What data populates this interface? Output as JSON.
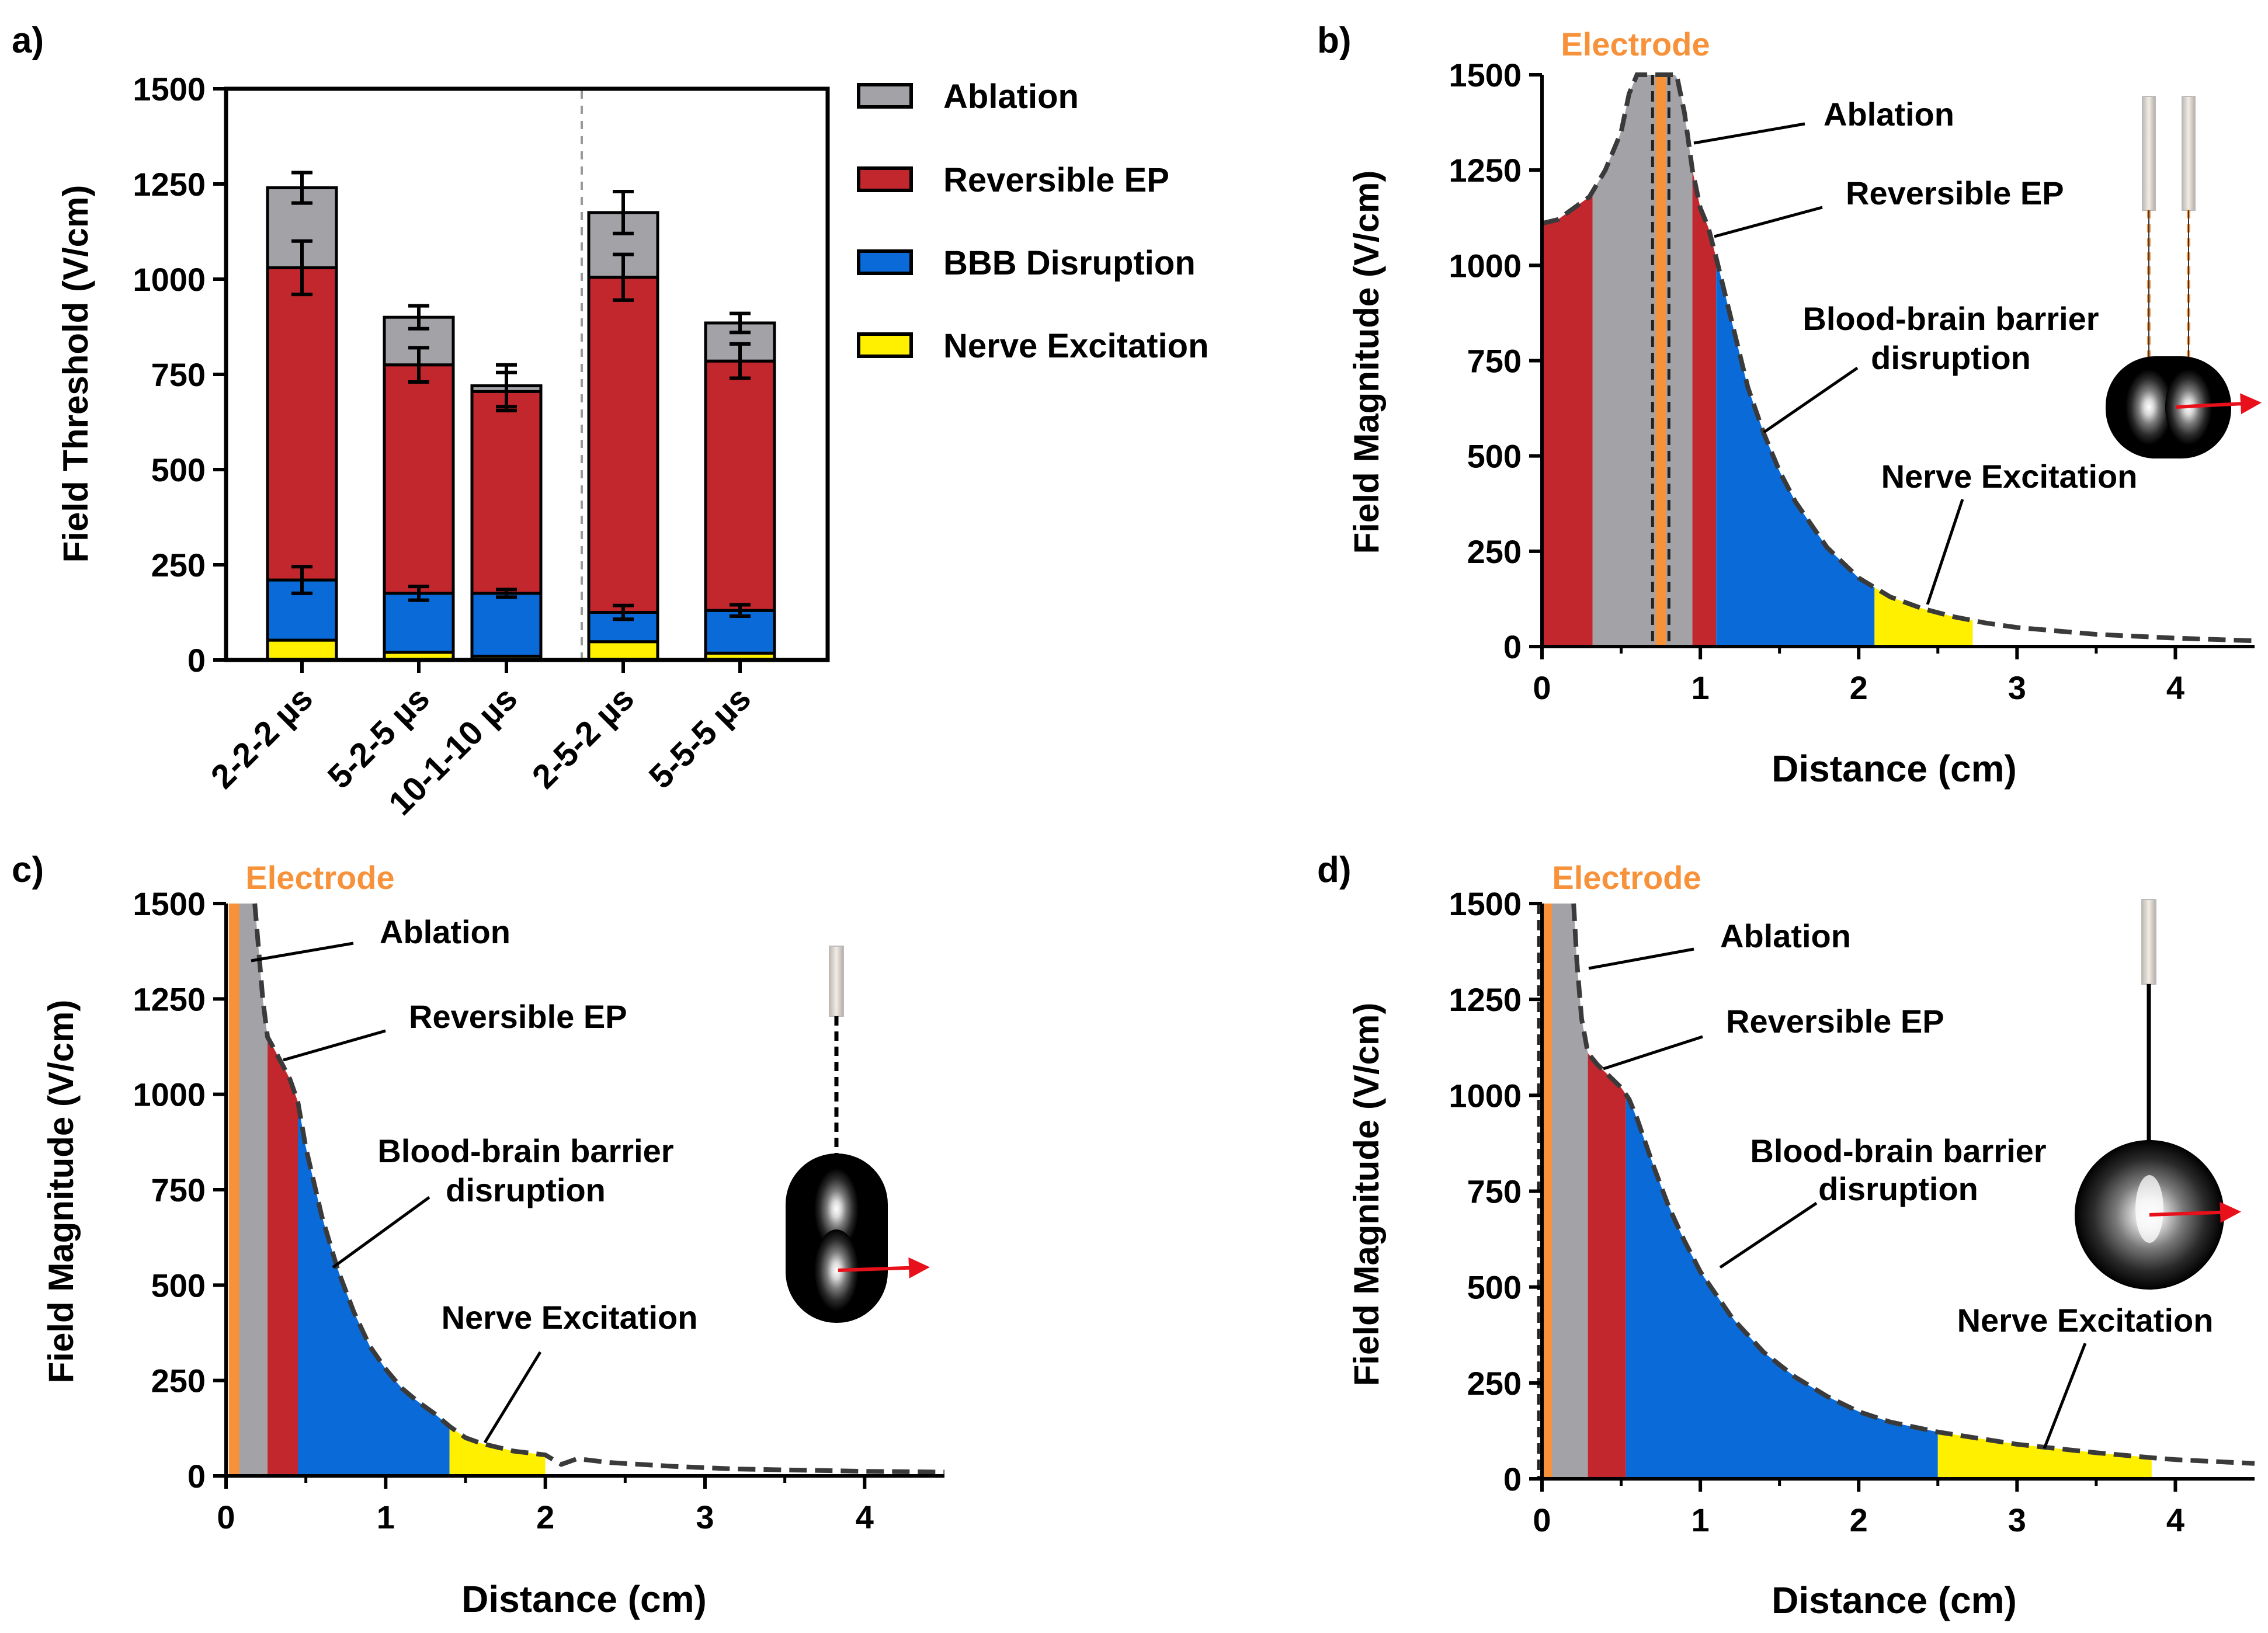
{
  "colors": {
    "ablation": "#A3A2A7",
    "reversible_ep": "#C1272D",
    "bbb": "#0A6AD8",
    "nerve": "#FFF000",
    "electrode": "#F7923A",
    "arrow": "#E8101A",
    "curve": "#3A3A3A"
  },
  "chart_data": [
    {
      "panel": "a)",
      "type": "bar",
      "stacked": true,
      "ylabel": "Field Threshold (V/cm)",
      "ylim": [
        0,
        1500
      ],
      "yticks": [
        "0",
        "250",
        "500",
        "750",
        "1000",
        "1250",
        "1500"
      ],
      "categories": [
        "2-2-2 µs",
        "5-2-5 µs",
        "10-1-10 µs",
        "2-5-2 µs",
        "5-5-5 µs"
      ],
      "divider_after_index": 2,
      "legend": [
        "Ablation",
        "Reversible EP",
        "BBB Disruption",
        "Nerve Excitation"
      ],
      "series": [
        {
          "name": "Nerve Excitation",
          "color_key": "nerve",
          "totals": [
            52,
            20,
            10,
            48,
            18
          ],
          "err": [
            0,
            0,
            0,
            0,
            0
          ]
        },
        {
          "name": "BBB Disruption",
          "color_key": "bbb",
          "totals": [
            210,
            175,
            175,
            125,
            130
          ],
          "err": [
            35,
            18,
            10,
            18,
            15
          ]
        },
        {
          "name": "Reversible EP",
          "color_key": "reversible_ep",
          "totals": [
            1030,
            775,
            705,
            1005,
            785
          ],
          "err": [
            70,
            45,
            50,
            60,
            45
          ]
        },
        {
          "name": "Ablation",
          "color_key": "ablation",
          "totals": [
            1240,
            900,
            720,
            1175,
            885
          ],
          "err": [
            40,
            30,
            55,
            55,
            25
          ]
        }
      ]
    },
    {
      "panel": "b)",
      "type": "area",
      "xlabel": "Distance (cm)",
      "ylabel": "Field Magnitude (V/cm)",
      "xlim": [
        0,
        4.5
      ],
      "ylim": [
        0,
        1500
      ],
      "xticks": [
        "0",
        "1",
        "2",
        "3",
        "4"
      ],
      "yticks": [
        "0",
        "250",
        "500",
        "750",
        "1000",
        "1250",
        "1500"
      ],
      "electrode_label": "Electrode",
      "electrode_x": 0.75,
      "curve": [
        [
          0,
          1110
        ],
        [
          0.1,
          1120
        ],
        [
          0.2,
          1150
        ],
        [
          0.3,
          1180
        ],
        [
          0.4,
          1250
        ],
        [
          0.5,
          1350
        ],
        [
          0.55,
          1450
        ],
        [
          0.6,
          1500
        ],
        [
          0.85,
          1500
        ],
        [
          0.9,
          1400
        ],
        [
          0.95,
          1250
        ],
        [
          1.0,
          1150
        ],
        [
          1.05,
          1100
        ],
        [
          1.1,
          1020
        ],
        [
          1.2,
          850
        ],
        [
          1.3,
          680
        ],
        [
          1.4,
          560
        ],
        [
          1.5,
          460
        ],
        [
          1.6,
          380
        ],
        [
          1.8,
          260
        ],
        [
          2.0,
          180
        ],
        [
          2.2,
          130
        ],
        [
          2.4,
          100
        ],
        [
          2.6,
          78
        ],
        [
          2.8,
          62
        ],
        [
          3.0,
          50
        ],
        [
          3.5,
          32
        ],
        [
          4.0,
          22
        ],
        [
          4.5,
          15
        ]
      ],
      "regions": [
        {
          "color_key": "reversible_ep",
          "x0": 0.0,
          "x1": 0.32
        },
        {
          "color_key": "ablation",
          "x0": 0.32,
          "x1": 0.95
        },
        {
          "color_key": "reversible_ep",
          "x0": 0.95,
          "x1": 1.1
        },
        {
          "color_key": "bbb",
          "x0": 1.1,
          "x1": 2.1
        },
        {
          "color_key": "nerve",
          "x0": 2.1,
          "x1": 2.72
        }
      ],
      "annotations": {
        "ablation": "Ablation",
        "rev": "Reversible EP",
        "bbb1": "Blood-brain barrier",
        "bbb2": "disruption",
        "nerve": "Nerve Excitation"
      }
    },
    {
      "panel": "c)",
      "type": "area",
      "xlabel": "Distance (cm)",
      "ylabel": "Field Magnitude (V/cm)",
      "xlim": [
        0,
        4.5
      ],
      "ylim": [
        0,
        1500
      ],
      "xticks": [
        "0",
        "1",
        "2",
        "3",
        "4"
      ],
      "yticks": [
        "0",
        "250",
        "500",
        "750",
        "1000",
        "1250",
        "1500"
      ],
      "electrode_label": "Electrode",
      "electrode_x": 0.05,
      "curve": [
        [
          0.18,
          1500
        ],
        [
          0.2,
          1400
        ],
        [
          0.23,
          1250
        ],
        [
          0.26,
          1150
        ],
        [
          0.3,
          1120
        ],
        [
          0.35,
          1080
        ],
        [
          0.4,
          1040
        ],
        [
          0.45,
          980
        ],
        [
          0.5,
          860
        ],
        [
          0.6,
          680
        ],
        [
          0.7,
          540
        ],
        [
          0.8,
          430
        ],
        [
          0.9,
          340
        ],
        [
          1.0,
          280
        ],
        [
          1.1,
          230
        ],
        [
          1.2,
          195
        ],
        [
          1.3,
          165
        ],
        [
          1.4,
          130
        ],
        [
          1.5,
          100
        ],
        [
          1.6,
          85
        ],
        [
          1.8,
          65
        ],
        [
          2.0,
          55
        ],
        [
          2.1,
          30
        ],
        [
          2.2,
          45
        ],
        [
          2.4,
          35
        ],
        [
          2.8,
          25
        ],
        [
          3.2,
          18
        ],
        [
          4.0,
          12
        ],
        [
          4.5,
          10
        ]
      ],
      "regions": [
        {
          "color_key": "ablation",
          "x0": 0.05,
          "x1": 0.26
        },
        {
          "color_key": "reversible_ep",
          "x0": 0.26,
          "x1": 0.45
        },
        {
          "color_key": "bbb",
          "x0": 0.45,
          "x1": 1.4
        },
        {
          "color_key": "nerve",
          "x0": 1.4,
          "x1": 2.0
        }
      ],
      "annotations": {
        "ablation": "Ablation",
        "rev": "Reversible EP",
        "bbb1": "Blood-brain barrier",
        "bbb2": "disruption",
        "nerve": "Nerve Excitation"
      }
    },
    {
      "panel": "d)",
      "type": "area",
      "xlabel": "Distance (cm)",
      "ylabel": "Field Magnitude (V/cm)",
      "xlim": [
        0,
        4.5
      ],
      "ylim": [
        0,
        1500
      ],
      "xticks": [
        "0",
        "1",
        "2",
        "3",
        "4"
      ],
      "yticks": [
        "0",
        "250",
        "500",
        "750",
        "1000",
        "1250",
        "1500"
      ],
      "electrode_label": "Electrode",
      "electrode_x": 0.03,
      "curve": [
        [
          0.2,
          1500
        ],
        [
          0.22,
          1350
        ],
        [
          0.25,
          1200
        ],
        [
          0.29,
          1110
        ],
        [
          0.35,
          1080
        ],
        [
          0.4,
          1060
        ],
        [
          0.5,
          1020
        ],
        [
          0.55,
          990
        ],
        [
          0.6,
          940
        ],
        [
          0.7,
          820
        ],
        [
          0.8,
          710
        ],
        [
          0.9,
          620
        ],
        [
          1.0,
          540
        ],
        [
          1.2,
          420
        ],
        [
          1.4,
          330
        ],
        [
          1.6,
          265
        ],
        [
          1.8,
          215
        ],
        [
          2.0,
          175
        ],
        [
          2.2,
          148
        ],
        [
          2.5,
          122
        ],
        [
          3.0,
          90
        ],
        [
          3.5,
          68
        ],
        [
          3.85,
          55
        ],
        [
          4.0,
          50
        ],
        [
          4.5,
          40
        ]
      ],
      "regions": [
        {
          "color_key": "ablation",
          "x0": 0.05,
          "x1": 0.29
        },
        {
          "color_key": "reversible_ep",
          "x0": 0.29,
          "x1": 0.53
        },
        {
          "color_key": "bbb",
          "x0": 0.53,
          "x1": 2.5
        },
        {
          "color_key": "nerve",
          "x0": 2.5,
          "x1": 3.85
        }
      ],
      "annotations": {
        "ablation": "Ablation",
        "rev": "Reversible EP",
        "bbb1": "Blood-brain barrier",
        "bbb2": "disruption",
        "nerve": "Nerve Excitation"
      }
    }
  ]
}
